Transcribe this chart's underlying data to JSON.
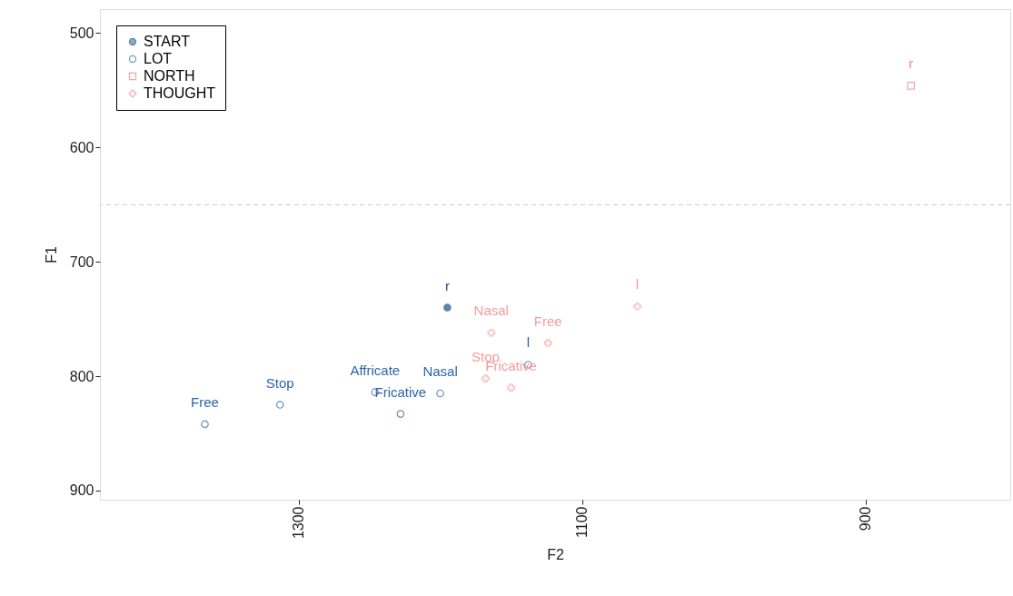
{
  "chart_data": {
    "type": "scatter",
    "xlabel": "F2",
    "ylabel": "F1",
    "xlim": [
      1440,
      798
    ],
    "xticks": [
      1300,
      1100,
      900
    ],
    "ylim": [
      908,
      479
    ],
    "yticks": [
      500,
      600,
      700,
      800,
      900
    ],
    "grid": false,
    "legend": "top left",
    "series": [
      {
        "name": "START",
        "color": "#1b4f8a",
        "marker": "circle",
        "x": [
          1195
        ],
        "values": [
          740
        ]
      },
      {
        "name": "LOT",
        "color": "#2a64a8",
        "marker": "circle",
        "x": [
          1366,
          1313,
          1246,
          1228,
          1200,
          1138
        ],
        "values": [
          842,
          825,
          814,
          833,
          815,
          790
        ]
      },
      {
        "name": "NORTH",
        "color": "#f07f7f",
        "marker": "square",
        "x": [
          868
        ],
        "values": [
          546
        ]
      },
      {
        "name": "THOUGHT",
        "color": "#f59a9a",
        "marker": "cross",
        "x": [
          1061,
          1164,
          1124,
          1168,
          1150
        ],
        "values": [
          739,
          762,
          771,
          802,
          810
        ]
      }
    ],
    "ref_lines": [
      {
        "axis": "y",
        "value": 650,
        "color": "#c8c8c8",
        "line_style": "dashed"
      }
    ],
    "annotations": [
      {
        "text": "r",
        "x": 1195,
        "y": 740
      },
      {
        "text": "Free",
        "x": 1366,
        "y": 842
      },
      {
        "text": "Stop",
        "x": 1313,
        "y": 825
      },
      {
        "text": "Affricate",
        "x": 1246,
        "y": 814
      },
      {
        "text": "Fricative",
        "x": 1228,
        "y": 833
      },
      {
        "text": "Nasal",
        "x": 1200,
        "y": 815
      },
      {
        "text": "l",
        "x": 1138,
        "y": 790
      },
      {
        "text": "r",
        "x": 868,
        "y": 546
      },
      {
        "text": "l",
        "x": 1061,
        "y": 739
      },
      {
        "text": "Nasal",
        "x": 1164,
        "y": 762
      },
      {
        "text": "Free",
        "x": 1124,
        "y": 771
      },
      {
        "text": "Stop",
        "x": 1168,
        "y": 802
      },
      {
        "text": "Fricative",
        "x": 1150,
        "y": 810
      }
    ]
  }
}
